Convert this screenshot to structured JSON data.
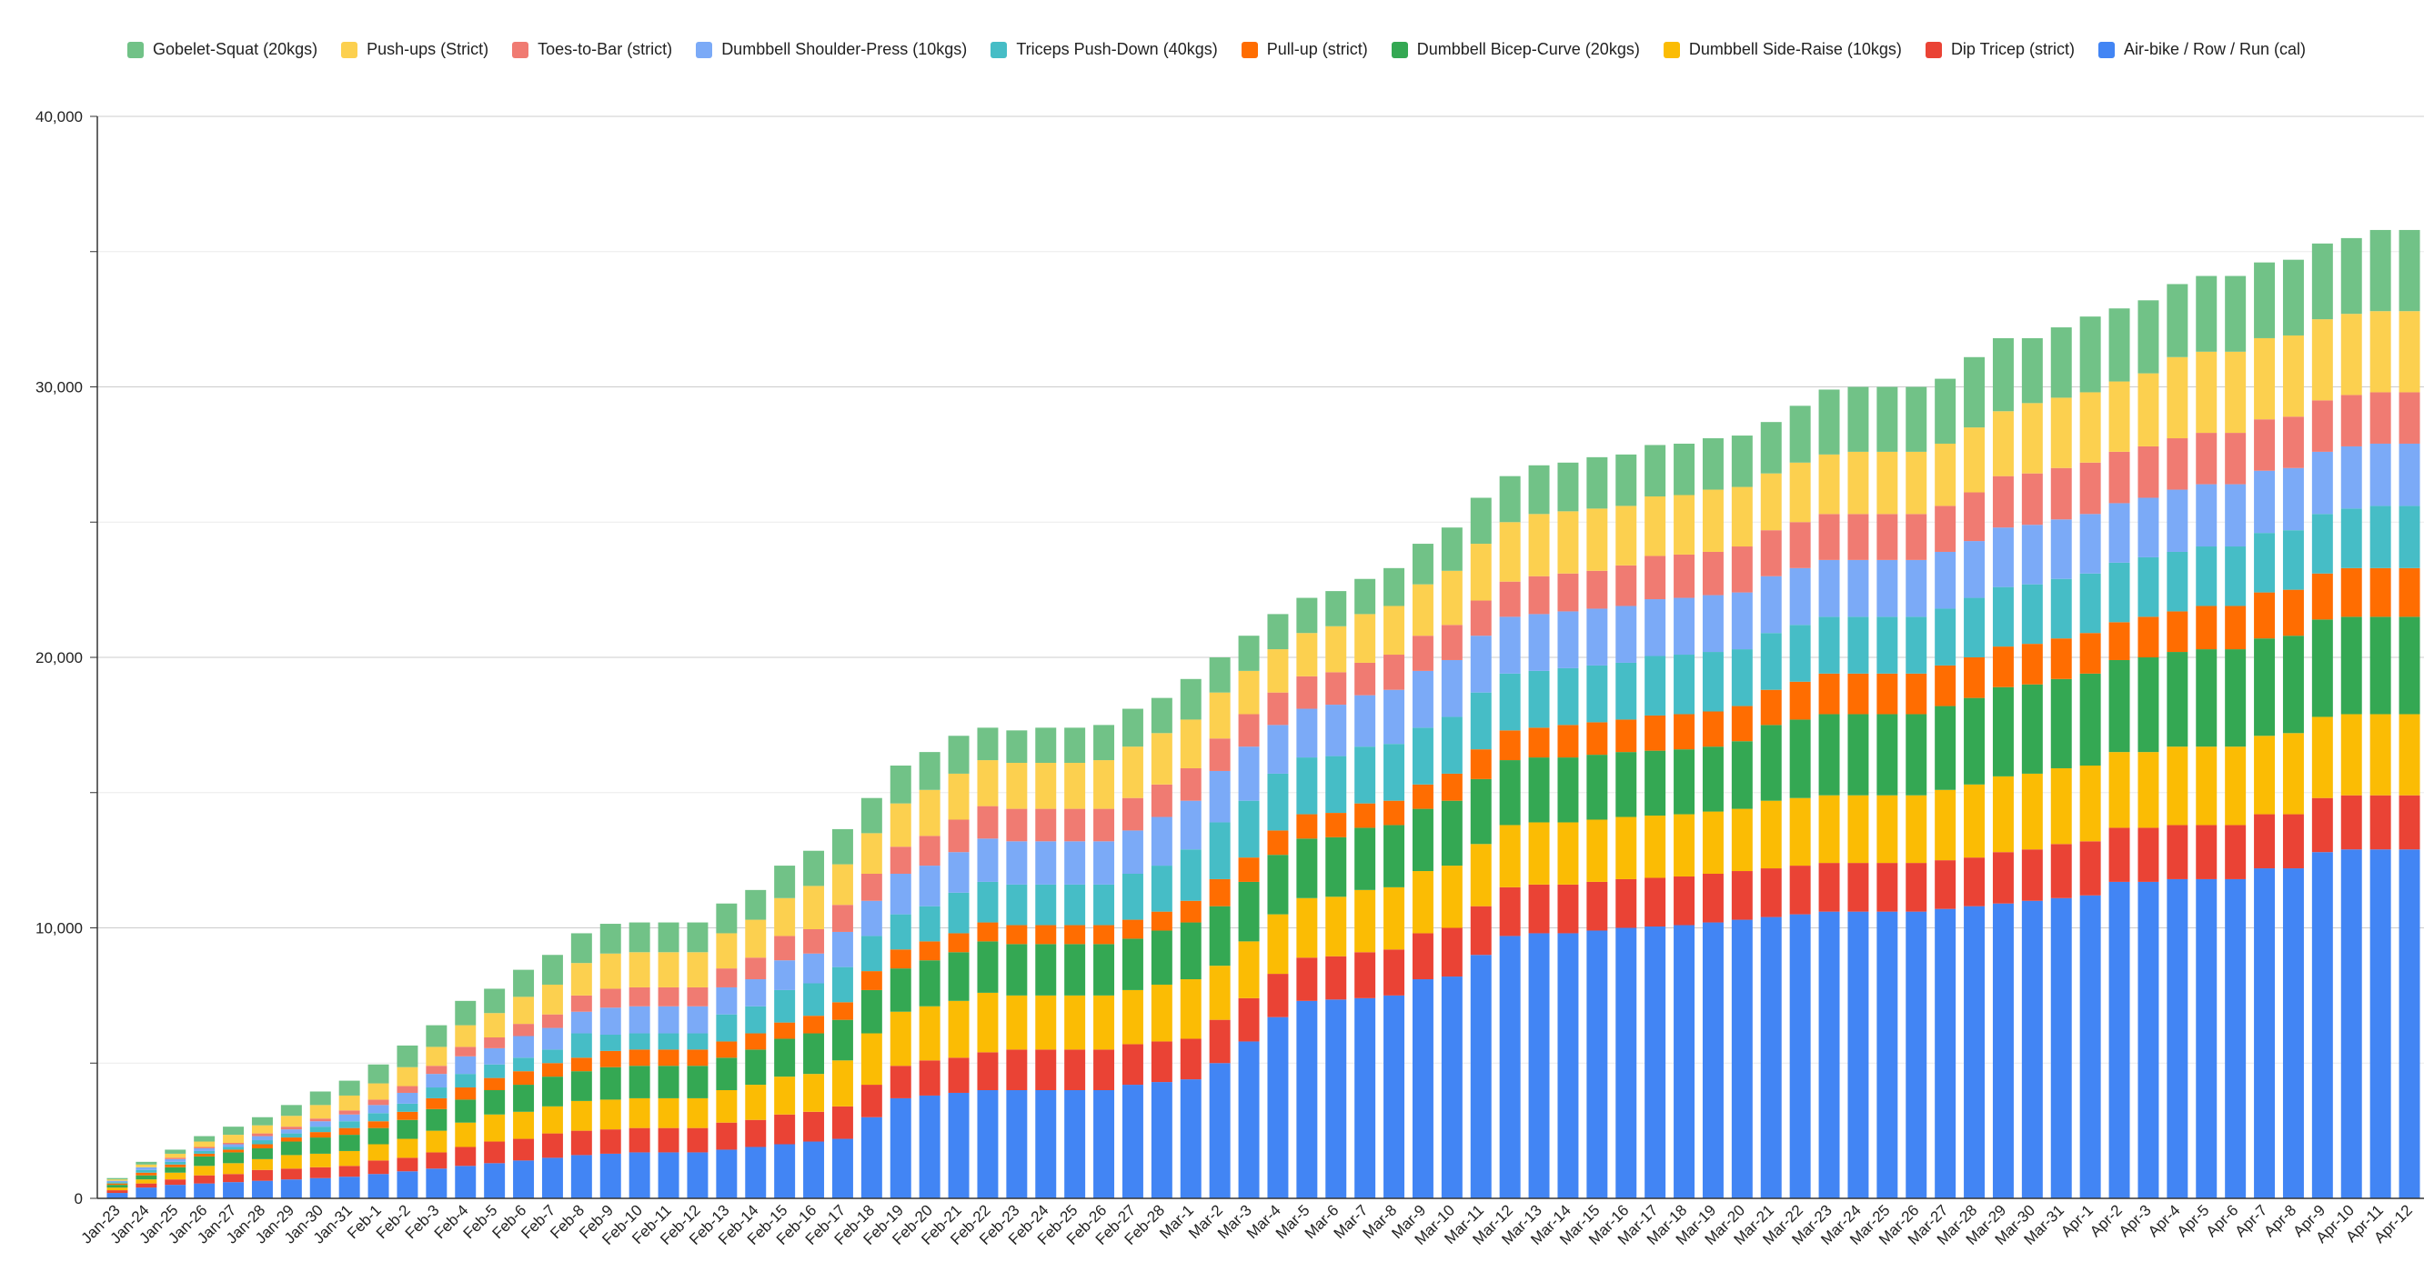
{
  "chart_data": {
    "type": "bar",
    "stacked": true,
    "title": "",
    "xlabel": "",
    "ylabel": "",
    "ylim": [
      0,
      40000
    ],
    "y_ticks": [
      0,
      10000,
      20000,
      30000,
      40000
    ],
    "y_tick_labels": [
      "0",
      "10,000",
      "20,000",
      "30,000",
      "40,000"
    ],
    "grid": true,
    "legend_position": "top",
    "categories": [
      "Jan-23",
      "Jan-24",
      "Jan-25",
      "Jan-26",
      "Jan-27",
      "Jan-28",
      "Jan-29",
      "Jan-30",
      "Jan-31",
      "Feb-1",
      "Feb-2",
      "Feb-3",
      "Feb-4",
      "Feb-5",
      "Feb-6",
      "Feb-7",
      "Feb-8",
      "Feb-9",
      "Feb-10",
      "Feb-11",
      "Feb-12",
      "Feb-13",
      "Feb-14",
      "Feb-15",
      "Feb-16",
      "Feb-17",
      "Feb-18",
      "Feb-19",
      "Feb-20",
      "Feb-21",
      "Feb-22",
      "Feb-23",
      "Feb-24",
      "Feb-25",
      "Feb-26",
      "Feb-27",
      "Feb-28",
      "Mar-1",
      "Mar-2",
      "Mar-3",
      "Mar-4",
      "Mar-5",
      "Mar-6",
      "Mar-7",
      "Mar-8",
      "Mar-9",
      "Mar-10",
      "Mar-11",
      "Mar-12",
      "Mar-13",
      "Mar-14",
      "Mar-15",
      "Mar-16",
      "Mar-17",
      "Mar-18",
      "Mar-19",
      "Mar-20",
      "Mar-21",
      "Mar-22",
      "Mar-23",
      "Mar-24",
      "Mar-25",
      "Mar-26",
      "Mar-27",
      "Mar-28",
      "Mar-29",
      "Mar-30",
      "Mar-31",
      "Apr-1",
      "Apr-2",
      "Apr-3",
      "Apr-4",
      "Apr-5",
      "Apr-6",
      "Apr-7",
      "Apr-8",
      "Apr-9",
      "Apr-10",
      "Apr-11",
      "Apr-12"
    ],
    "legend_order": [
      "Gobelet-Squat (20kgs)",
      "Push-ups (Strict)",
      "Toes-to-Bar (strict)",
      "Dumbbell Shoulder-Press (10kgs)",
      "Triceps Push-Down (40kgs)",
      "Pull-up (strict)",
      "Dumbbell Bicep-Curve (20kgs)",
      "Dumbbell Side-Raise (10kgs)",
      "Dip Tricep (strict)",
      "Air-bike / Row / Run (cal)"
    ],
    "series": [
      {
        "name": "Air-bike / Row / Run (cal)",
        "color": "#4285f4",
        "values": [
          200,
          400,
          500,
          550,
          600,
          650,
          700,
          750,
          800,
          900,
          1000,
          1100,
          1200,
          1300,
          1400,
          1500,
          1600,
          1650,
          1700,
          1700,
          1700,
          1800,
          1900,
          2000,
          2100,
          2200,
          3000,
          3700,
          3800,
          3900,
          4000,
          4000,
          4000,
          4000,
          4000,
          4200,
          4300,
          4400,
          5000,
          5800,
          6700,
          7300,
          7350,
          7400,
          7500,
          8100,
          8200,
          9000,
          9700,
          9800,
          9800,
          9900,
          10000,
          10050,
          10100,
          10200,
          10300,
          10400,
          10500,
          10600,
          10600,
          10600,
          10600,
          10700,
          10800,
          10900,
          11000,
          11100,
          11200,
          11700,
          11700,
          11800,
          11800,
          11800,
          12200,
          12200,
          12800,
          12900,
          12900,
          12900
        ]
      },
      {
        "name": "Dip Tricep (strict)",
        "color": "#ea4335",
        "values": [
          100,
          150,
          200,
          300,
          300,
          400,
          400,
          400,
          400,
          500,
          500,
          600,
          700,
          800,
          800,
          900,
          900,
          900,
          900,
          900,
          900,
          1000,
          1000,
          1100,
          1100,
          1200,
          1200,
          1200,
          1300,
          1300,
          1400,
          1500,
          1500,
          1500,
          1500,
          1500,
          1500,
          1500,
          1600,
          1600,
          1600,
          1600,
          1600,
          1700,
          1700,
          1700,
          1800,
          1800,
          1800,
          1800,
          1800,
          1800,
          1800,
          1800,
          1800,
          1800,
          1800,
          1800,
          1800,
          1800,
          1800,
          1800,
          1800,
          1800,
          1800,
          1900,
          1900,
          2000,
          2000,
          2000,
          2000,
          2000,
          2000,
          2000,
          2000,
          2000,
          2000,
          2000,
          2000,
          2000
        ]
      },
      {
        "name": "Dumbbell Side-Raise (10kgs)",
        "color": "#fbbc04",
        "values": [
          100,
          150,
          250,
          350,
          400,
          400,
          500,
          500,
          550,
          600,
          700,
          800,
          900,
          1000,
          1000,
          1000,
          1100,
          1100,
          1100,
          1100,
          1100,
          1200,
          1300,
          1400,
          1400,
          1700,
          1900,
          2000,
          2000,
          2100,
          2200,
          2000,
          2000,
          2000,
          2000,
          2000,
          2100,
          2200,
          2000,
          2100,
          2200,
          2200,
          2200,
          2300,
          2300,
          2300,
          2300,
          2300,
          2300,
          2300,
          2300,
          2300,
          2300,
          2300,
          2300,
          2300,
          2300,
          2500,
          2500,
          2500,
          2500,
          2500,
          2500,
          2600,
          2700,
          2800,
          2800,
          2800,
          2800,
          2800,
          2800,
          2900,
          2900,
          2900,
          2900,
          3000,
          3000,
          3000,
          3000,
          3000
        ]
      },
      {
        "name": "Dumbbell Bicep-Curve (20kgs)",
        "color": "#34a853",
        "values": [
          100,
          150,
          200,
          350,
          400,
          400,
          500,
          600,
          600,
          600,
          700,
          800,
          850,
          900,
          1000,
          1100,
          1100,
          1200,
          1200,
          1200,
          1200,
          1200,
          1300,
          1400,
          1500,
          1500,
          1600,
          1600,
          1700,
          1800,
          1900,
          1900,
          1900,
          1900,
          1900,
          1900,
          2000,
          2100,
          2200,
          2200,
          2200,
          2200,
          2200,
          2300,
          2300,
          2300,
          2400,
          2400,
          2400,
          2400,
          2400,
          2400,
          2400,
          2400,
          2400,
          2400,
          2500,
          2800,
          2900,
          3000,
          3000,
          3000,
          3000,
          3100,
          3200,
          3300,
          3300,
          3300,
          3400,
          3400,
          3500,
          3500,
          3600,
          3600,
          3600,
          3600,
          3600,
          3600,
          3600,
          3600
        ]
      },
      {
        "name": "Pull-up (strict)",
        "color": "#ff6d01",
        "values": [
          50,
          100,
          100,
          100,
          100,
          150,
          150,
          200,
          250,
          250,
          300,
          400,
          450,
          450,
          500,
          500,
          500,
          600,
          600,
          600,
          600,
          600,
          600,
          600,
          650,
          650,
          700,
          700,
          700,
          700,
          700,
          700,
          700,
          700,
          700,
          700,
          700,
          800,
          1000,
          900,
          900,
          900,
          900,
          900,
          900,
          900,
          1000,
          1100,
          1100,
          1100,
          1200,
          1200,
          1200,
          1300,
          1300,
          1300,
          1300,
          1300,
          1400,
          1500,
          1500,
          1500,
          1500,
          1500,
          1500,
          1500,
          1500,
          1500,
          1500,
          1400,
          1500,
          1500,
          1600,
          1600,
          1700,
          1700,
          1700,
          1800,
          1800,
          1800
        ]
      },
      {
        "name": "Triceps Push-Down (40kgs)",
        "color": "#46bdc6",
        "values": [
          50,
          100,
          100,
          100,
          100,
          150,
          150,
          200,
          250,
          300,
          300,
          400,
          500,
          500,
          500,
          500,
          900,
          600,
          600,
          600,
          600,
          1000,
          1000,
          1200,
          1200,
          1300,
          1300,
          1300,
          1300,
          1500,
          1500,
          1500,
          1500,
          1500,
          1500,
          1700,
          1700,
          1900,
          2100,
          2100,
          2100,
          2100,
          2100,
          2100,
          2100,
          2100,
          2100,
          2100,
          2100,
          2100,
          2100,
          2100,
          2100,
          2200,
          2200,
          2200,
          2100,
          2100,
          2100,
          2100,
          2100,
          2100,
          2100,
          2100,
          2200,
          2200,
          2200,
          2200,
          2200,
          2200,
          2200,
          2200,
          2200,
          2200,
          2200,
          2200,
          2200,
          2200,
          2300,
          2300
        ]
      },
      {
        "name": "Dumbbell Shoulder-Press (10kgs)",
        "color": "#7baaf7",
        "values": [
          50,
          100,
          100,
          100,
          100,
          150,
          150,
          200,
          250,
          300,
          400,
          500,
          650,
          600,
          800,
          800,
          800,
          1000,
          1000,
          1000,
          1000,
          1000,
          1000,
          1100,
          1100,
          1300,
          1300,
          1500,
          1500,
          1500,
          1600,
          1600,
          1600,
          1600,
          1600,
          1600,
          1800,
          1800,
          1900,
          2000,
          1800,
          1800,
          1900,
          1900,
          2000,
          2100,
          2100,
          2100,
          2100,
          2100,
          2100,
          2100,
          2100,
          2100,
          2100,
          2100,
          2100,
          2100,
          2100,
          2100,
          2100,
          2100,
          2100,
          2100,
          2100,
          2200,
          2200,
          2200,
          2200,
          2200,
          2200,
          2300,
          2300,
          2300,
          2300,
          2300,
          2300,
          2300,
          2300,
          2300
        ]
      },
      {
        "name": "Toes-to-Bar (strict)",
        "color": "#f07b72",
        "values": [
          0,
          0,
          50,
          50,
          50,
          100,
          100,
          100,
          150,
          200,
          250,
          300,
          350,
          400,
          450,
          500,
          600,
          700,
          700,
          700,
          700,
          700,
          800,
          900,
          900,
          1000,
          1000,
          1000,
          1100,
          1200,
          1200,
          1200,
          1200,
          1200,
          1200,
          1200,
          1200,
          1200,
          1200,
          1200,
          1200,
          1200,
          1200,
          1200,
          1300,
          1300,
          1300,
          1300,
          1300,
          1400,
          1400,
          1400,
          1500,
          1600,
          1600,
          1600,
          1700,
          1700,
          1700,
          1700,
          1700,
          1700,
          1700,
          1700,
          1800,
          1900,
          1900,
          1900,
          1900,
          1900,
          1900,
          1900,
          1900,
          1900,
          1900,
          1900,
          1900,
          1900,
          1900,
          1900
        ]
      },
      {
        "name": "Push-ups (Strict)",
        "color": "#fcd04f",
        "values": [
          50,
          100,
          150,
          200,
          300,
          300,
          400,
          500,
          550,
          600,
          700,
          700,
          800,
          900,
          1000,
          1100,
          1200,
          1300,
          1300,
          1300,
          1300,
          1300,
          1400,
          1400,
          1600,
          1500,
          1500,
          1600,
          1700,
          1700,
          1700,
          1700,
          1700,
          1700,
          1800,
          1900,
          1900,
          1800,
          1700,
          1600,
          1600,
          1600,
          1700,
          1800,
          1800,
          1900,
          2000,
          2100,
          2200,
          2300,
          2300,
          2300,
          2200,
          2200,
          2200,
          2300,
          2200,
          2100,
          2200,
          2200,
          2300,
          2300,
          2300,
          2300,
          2400,
          2400,
          2600,
          2600,
          2600,
          2600,
          2700,
          3000,
          3000,
          3000,
          3000,
          3000,
          3000,
          3000,
          3000,
          3000
        ]
      },
      {
        "name": "Gobelet-Squat (20kgs)",
        "color": "#71c287",
        "values": [
          50,
          100,
          150,
          200,
          300,
          300,
          400,
          500,
          550,
          700,
          800,
          800,
          900,
          900,
          1000,
          1100,
          1100,
          1100,
          1100,
          1100,
          1100,
          1100,
          1100,
          1200,
          1300,
          1300,
          1300,
          1400,
          1400,
          1400,
          1200,
          1200,
          1300,
          1300,
          1300,
          1400,
          1300,
          1500,
          1300,
          1300,
          1300,
          1300,
          1300,
          1300,
          1400,
          1500,
          1600,
          1700,
          1700,
          1800,
          1800,
          1900,
          1900,
          1900,
          1900,
          1900,
          1900,
          1900,
          2100,
          2400,
          2400,
          2400,
          2400,
          2400,
          2600,
          2700,
          2400,
          2600,
          2800,
          2700,
          2700,
          2700,
          2800,
          2800,
          2800,
          2800,
          2800,
          2800,
          3000,
          3000
        ]
      }
    ]
  }
}
